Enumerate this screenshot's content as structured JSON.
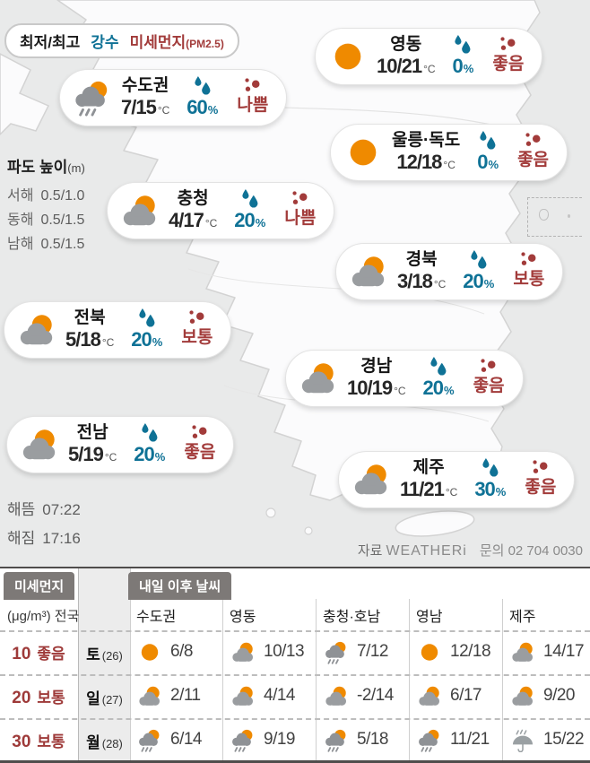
{
  "legend": {
    "temp_label": "최저/최고",
    "precip_label": "강수",
    "dust_label": "미세먼지",
    "dust_sub": "(PM2.5)"
  },
  "icons": {
    "precip": "raindrops",
    "dust": "dust-dots"
  },
  "bubbles": [
    {
      "name": "수도권",
      "icon": "rain-sun",
      "temp": "7/15",
      "unit": "°C",
      "precip": "60",
      "precip_unit": "%",
      "dust": "나쁨"
    },
    {
      "name": "영동",
      "icon": "sun",
      "temp": "10/21",
      "unit": "°C",
      "precip": "0",
      "precip_unit": "%",
      "dust": "좋음"
    },
    {
      "name": "울릉·독도",
      "icon": "sun",
      "temp": "12/18",
      "unit": "°C",
      "precip": "0",
      "precip_unit": "%",
      "dust": "좋음"
    },
    {
      "name": "충청",
      "icon": "partly-cloudy",
      "temp": "4/17",
      "unit": "°C",
      "precip": "20",
      "precip_unit": "%",
      "dust": "나쁨"
    },
    {
      "name": "경북",
      "icon": "partly-cloudy",
      "temp": "3/18",
      "unit": "°C",
      "precip": "20",
      "precip_unit": "%",
      "dust": "보통"
    },
    {
      "name": "전북",
      "icon": "partly-cloudy",
      "temp": "5/18",
      "unit": "°C",
      "precip": "20",
      "precip_unit": "%",
      "dust": "보통"
    },
    {
      "name": "경남",
      "icon": "partly-cloudy",
      "temp": "10/19",
      "unit": "°C",
      "precip": "20",
      "precip_unit": "%",
      "dust": "좋음"
    },
    {
      "name": "전남",
      "icon": "partly-cloudy",
      "temp": "5/19",
      "unit": "°C",
      "precip": "20",
      "precip_unit": "%",
      "dust": "좋음"
    },
    {
      "name": "제주",
      "icon": "partly-cloudy",
      "temp": "11/21",
      "unit": "°C",
      "precip": "30",
      "precip_unit": "%",
      "dust": "좋음"
    }
  ],
  "waves": {
    "title": "파도 높이",
    "unit": "(m)",
    "rows": [
      {
        "sea": "서해",
        "height": "0.5/1.0"
      },
      {
        "sea": "동해",
        "height": "0.5/1.5"
      },
      {
        "sea": "남해",
        "height": "0.5/1.5"
      }
    ]
  },
  "sun_times": {
    "rise_label": "해뜸",
    "rise_time": "07:22",
    "set_label": "해짐",
    "set_time": "17:16"
  },
  "credit": {
    "source_label": "자료",
    "source_name": "WEATHERi",
    "contact": "문의 02 704 0030"
  },
  "dust_panel": {
    "tab": "미세먼지",
    "scope": "(μg/m³) 전국",
    "rows": [
      {
        "value": "10",
        "status": "좋음"
      },
      {
        "value": "20",
        "status": "보통"
      },
      {
        "value": "30",
        "status": "보통"
      }
    ]
  },
  "forecast": {
    "tab": "내일 이후 날씨",
    "columns": [
      "수도권",
      "영동",
      "충청·호남",
      "영남",
      "제주"
    ],
    "days": [
      {
        "day": "토",
        "date": "(26)",
        "cells": [
          {
            "icon": "sun",
            "temp": "6/8"
          },
          {
            "icon": "partly-cloudy",
            "temp": "10/13"
          },
          {
            "icon": "rain-sun",
            "temp": "7/12"
          },
          {
            "icon": "sun",
            "temp": "12/18"
          },
          {
            "icon": "partly-cloudy",
            "temp": "14/17"
          }
        ]
      },
      {
        "day": "일",
        "date": "(27)",
        "cells": [
          {
            "icon": "partly-cloudy",
            "temp": "2/11"
          },
          {
            "icon": "partly-cloudy",
            "temp": "4/14"
          },
          {
            "icon": "partly-cloudy",
            "temp": "-2/14"
          },
          {
            "icon": "partly-cloudy",
            "temp": "6/17"
          },
          {
            "icon": "partly-cloudy",
            "temp": "9/20"
          }
        ]
      },
      {
        "day": "월",
        "date": "(28)",
        "cells": [
          {
            "icon": "rain-sun",
            "temp": "6/14"
          },
          {
            "icon": "rain-sun",
            "temp": "9/19"
          },
          {
            "icon": "rain-sun",
            "temp": "5/18"
          },
          {
            "icon": "rain-sun",
            "temp": "11/21"
          },
          {
            "icon": "umbrella-rain",
            "temp": "15/22"
          }
        ]
      }
    ]
  },
  "colors": {
    "sun_orange": "#ef8a00",
    "precip_blue": "#0f7296",
    "dust_red": "#a23b3a",
    "tab_gray": "#7d7977",
    "sea_gray": "#e9eaea"
  }
}
